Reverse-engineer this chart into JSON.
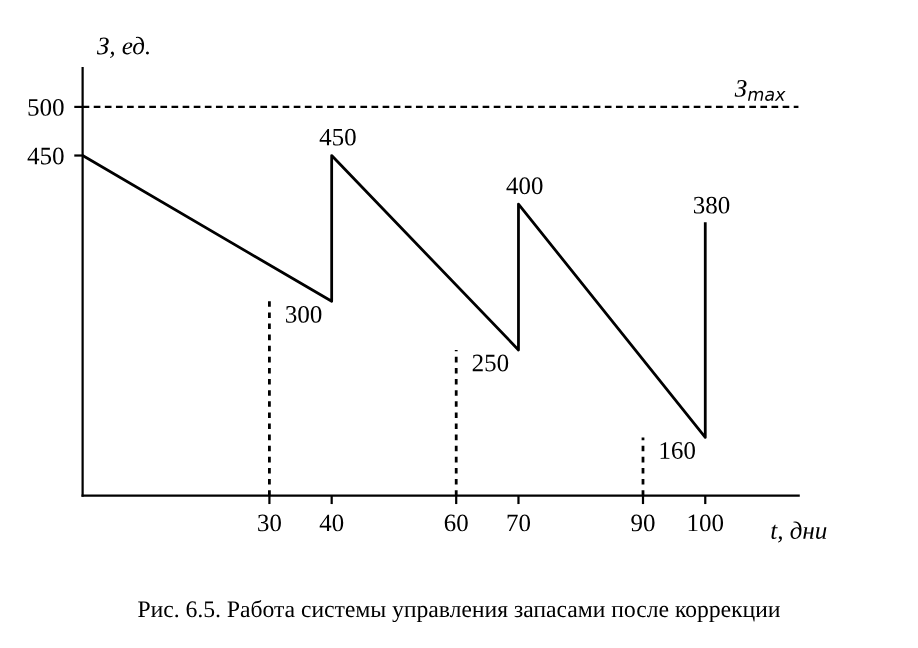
{
  "chart_data": {
    "type": "line",
    "xlabel": "t, дни",
    "ylabel": "З, ед.",
    "annotations": [
      "Рис. 6.5. Работа системы управления запасами после коррекции"
    ],
    "xlim": [
      0,
      115
    ],
    "xticks": [
      30,
      40,
      60,
      70,
      90,
      100
    ],
    "ylim": [
      100,
      540
    ],
    "yticks": [
      450,
      500
    ],
    "grid": false,
    "legend": false,
    "marker": "none",
    "series": [
      {
        "color": "#000000",
        "line_style": "solid",
        "x": [
          0,
          40,
          40,
          70,
          70,
          100,
          100
        ],
        "values": [
          450,
          300,
          450,
          250,
          400,
          160,
          380
        ],
        "value_labels": [
          null,
          "300",
          "450",
          "250",
          "400",
          "160",
          "380"
        ]
      },
      {
        "color": "#000000",
        "line_style": "dotted",
        "x": [
          30,
          30
        ],
        "values": [
          100,
          300
        ]
      },
      {
        "color": "#000000",
        "line_style": "dotted",
        "x": [
          60,
          60
        ],
        "values": [
          100,
          250
        ]
      },
      {
        "color": "#000000",
        "line_style": "dotted",
        "x": [
          90,
          90
        ],
        "values": [
          100,
          160
        ]
      }
    ],
    "ref_lines": [
      {
        "axis": "y",
        "value": 500,
        "label": "З$_{max}$",
        "color": "#000000",
        "line_style": "dashed"
      }
    ]
  }
}
